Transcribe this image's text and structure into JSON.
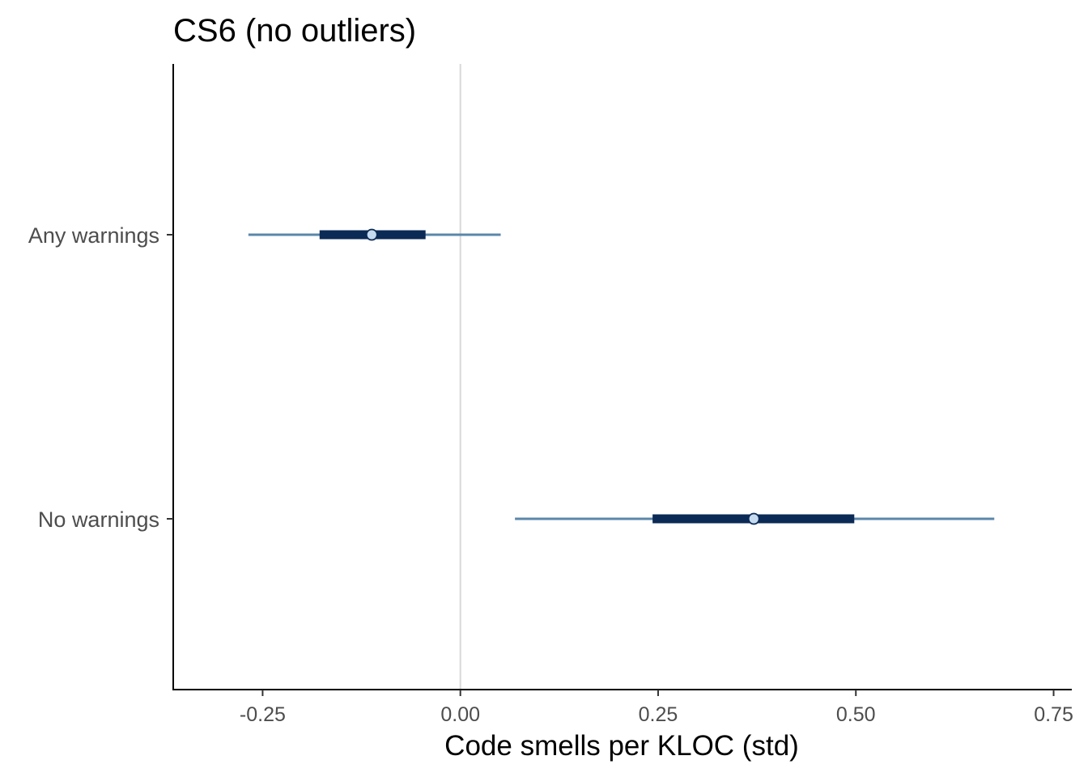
{
  "chart_data": {
    "type": "interval",
    "title": "CS6 (no outliers)",
    "xlabel": "Code smells per KLOC (std)",
    "ylabel": "",
    "xlim": [
      -0.363,
      0.773
    ],
    "xticks": [
      -0.25,
      0.0,
      0.25,
      0.5,
      0.75
    ],
    "xtick_labels": [
      "-0.25",
      "0.00",
      "0.25",
      "0.50",
      "0.75"
    ],
    "reference_line": 0.0,
    "grid": false,
    "categories": [
      "Any warnings",
      "No warnings"
    ],
    "intervals": [
      {
        "category": "Any warnings",
        "point": -0.112,
        "inner": [
          -0.178,
          -0.044
        ],
        "outer": [
          -0.268,
          0.051
        ]
      },
      {
        "category": "No warnings",
        "point": 0.371,
        "inner": [
          0.243,
          0.498
        ],
        "outer": [
          0.069,
          0.675
        ]
      }
    ],
    "colors": {
      "outer_interval": "#5b87aa",
      "inner_interval": "#0b2a55",
      "point_fill": "#c6dbef",
      "point_stroke": "#0b2a55",
      "reference_line": "#d9d9d9",
      "axis": "#000000"
    }
  }
}
